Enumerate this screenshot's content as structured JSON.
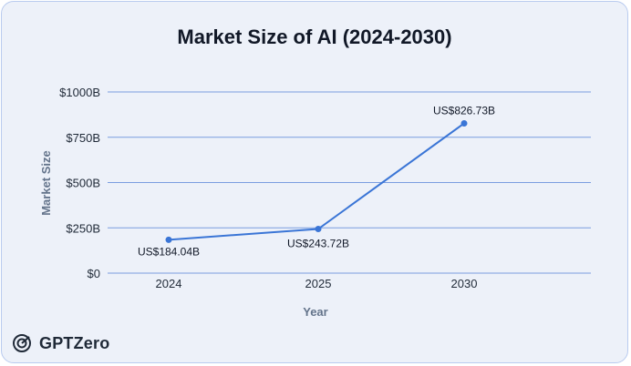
{
  "chart_data": {
    "type": "line",
    "title": "Market Size of AI (2024-2030)",
    "xlabel": "Year",
    "ylabel": "Market Size",
    "categories": [
      "2024",
      "2025",
      "2030"
    ],
    "series": [
      {
        "values": [
          184.04,
          243.72,
          826.73
        ]
      }
    ],
    "data_labels": [
      "US$184.04B",
      "US$243.72B",
      "US$826.73B"
    ],
    "y_ticks": [
      0,
      250,
      500,
      750,
      1000
    ],
    "y_tick_labels": [
      "$0",
      "$250B",
      "$500B",
      "$750B",
      "$1000B"
    ],
    "ylim": [
      0,
      1000
    ],
    "grid": true,
    "colors": {
      "line": "#3a75d6",
      "grid": "#7a9de0",
      "axis_text": "#1f2937",
      "axis_title": "#64748b"
    }
  },
  "brand": {
    "name": "GPTZero",
    "icon": "gptzero-logo-icon"
  }
}
